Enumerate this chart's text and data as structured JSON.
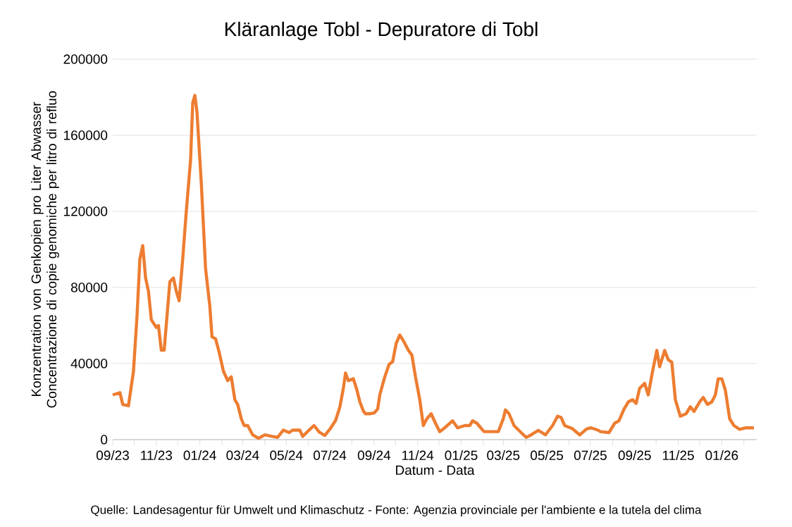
{
  "chart_data": {
    "type": "line",
    "title": "Kläranlage Tobl - Depuratore di Tobl",
    "xlabel": "Datum - Data",
    "ylabel": "Konzentration von Genkopien pro Liter Abwasser Concentrazione di copie genomiche per litro di refluo",
    "annotations": [
      "Quelle: Landesagentur für Umwelt und Klimaschutz - Fonte: Agenzia provinciale per l'ambiente e la tutela del clima"
    ],
    "x": [
      "2023-09-01",
      "2023-09-11",
      "2023-09-15",
      "2023-09-23",
      "2023-09-30",
      "2023-10-05",
      "2023-10-09",
      "2023-10-13",
      "2023-10-17",
      "2023-10-21",
      "2023-10-25",
      "2023-11-01",
      "2023-11-04",
      "2023-11-08",
      "2023-11-12",
      "2023-11-16",
      "2023-11-20",
      "2023-11-25",
      "2023-11-29",
      "2023-12-03",
      "2023-12-08",
      "2023-12-13",
      "2023-12-19",
      "2023-12-22",
      "2023-12-25",
      "2023-12-28",
      "2024-01-03",
      "2024-01-09",
      "2024-01-15",
      "2024-01-18",
      "2024-01-23",
      "2024-01-28",
      "2024-02-03",
      "2024-02-09",
      "2024-02-14",
      "2024-02-19",
      "2024-02-23",
      "2024-02-28",
      "2024-03-03",
      "2024-03-08",
      "2024-03-15",
      "2024-03-23",
      "2024-04-01",
      "2024-04-11",
      "2024-04-19",
      "2024-04-27",
      "2024-05-05",
      "2024-05-10",
      "2024-05-20",
      "2024-05-24",
      "2024-06-02",
      "2024-06-09",
      "2024-06-16",
      "2024-06-24",
      "2024-07-02",
      "2024-07-09",
      "2024-07-15",
      "2024-07-20",
      "2024-07-23",
      "2024-07-27",
      "2024-08-03",
      "2024-08-08",
      "2024-08-12",
      "2024-08-17",
      "2024-08-20",
      "2024-08-26",
      "2024-09-01",
      "2024-09-06",
      "2024-09-09",
      "2024-09-16",
      "2024-09-22",
      "2024-09-27",
      "2024-10-02",
      "2024-10-07",
      "2024-10-12",
      "2024-10-19",
      "2024-10-24",
      "2024-10-29",
      "2024-11-04",
      "2024-11-09",
      "2024-11-14",
      "2024-11-20",
      "2024-11-26",
      "2024-12-02",
      "2024-12-09",
      "2024-12-20",
      "2024-12-27",
      "2025-01-06",
      "2025-01-13",
      "2025-01-17",
      "2025-01-23",
      "2025-02-02",
      "2025-02-12",
      "2025-02-22",
      "2025-03-01",
      "2025-03-04",
      "2025-03-09",
      "2025-03-16",
      "2025-03-26",
      "2025-04-02",
      "2025-04-09",
      "2025-04-19",
      "2025-04-29",
      "2025-05-09",
      "2025-05-16",
      "2025-05-21",
      "2025-05-26",
      "2025-06-06",
      "2025-06-16",
      "2025-06-26",
      "2025-07-02",
      "2025-07-12",
      "2025-07-15",
      "2025-07-27",
      "2025-08-04",
      "2025-08-10",
      "2025-08-17",
      "2025-08-23",
      "2025-08-29",
      "2025-09-03",
      "2025-09-08",
      "2025-09-15",
      "2025-09-20",
      "2025-09-26",
      "2025-10-02",
      "2025-10-06",
      "2025-10-10",
      "2025-10-13",
      "2025-10-18",
      "2025-10-23",
      "2025-10-28",
      "2025-11-04",
      "2025-11-12",
      "2025-11-18",
      "2025-11-23",
      "2025-12-01",
      "2025-12-06",
      "2025-12-12",
      "2025-12-18",
      "2025-12-23",
      "2025-12-27",
      "2026-01-01",
      "2026-01-06",
      "2026-01-12",
      "2026-01-18",
      "2026-01-26",
      "2026-02-04",
      "2026-02-15"
    ],
    "series": [
      {
        "color": "#ed7d31",
        "values": [
          23500,
          24700,
          18500,
          17800,
          35800,
          65000,
          95000,
          102000,
          85000,
          78000,
          63000,
          59000,
          60000,
          47000,
          47000,
          65000,
          83000,
          85000,
          78000,
          73000,
          95000,
          120000,
          147000,
          177000,
          181000,
          172000,
          135000,
          90000,
          70000,
          54000,
          53000,
          46000,
          36000,
          31000,
          33000,
          21000,
          18500,
          11000,
          7400,
          7400,
          2500,
          700,
          2500,
          1700,
          1200,
          5000,
          3700,
          5000,
          5000,
          1700,
          5000,
          7400,
          4000,
          2200,
          6000,
          10000,
          17000,
          27000,
          35000,
          31000,
          32000,
          26000,
          20000,
          15000,
          13600,
          13600,
          14000,
          16000,
          23500,
          33000,
          39500,
          41000,
          50600,
          55000,
          52000,
          47000,
          44400,
          33000,
          21000,
          7400,
          11000,
          13600,
          8600,
          4200,
          6200,
          9900,
          6200,
          7400,
          7400,
          9900,
          8600,
          4200,
          4200,
          4200,
          11000,
          15600,
          13600,
          7400,
          3700,
          1200,
          2500,
          4900,
          2500,
          7400,
          12300,
          11600,
          7400,
          5700,
          2500,
          5700,
          6200,
          4900,
          4200,
          3700,
          8600,
          9900,
          16000,
          19800,
          21000,
          19000,
          27000,
          29600,
          23500,
          35800,
          46900,
          38300,
          43200,
          46900,
          42000,
          40700,
          21000,
          12300,
          13600,
          17300,
          14800,
          19800,
          22200,
          18500,
          19800,
          23500,
          32000,
          32000,
          26000,
          11000,
          7400,
          5400,
          6200,
          6200
        ]
      }
    ],
    "xlim": [
      "2023-09-01",
      "2026-02-19"
    ],
    "xticks": [
      {
        "value": "2023-09-01",
        "label": "09/23"
      },
      {
        "value": "2023-10-01",
        "label": null
      },
      {
        "value": "2023-11-01",
        "label": "11/23"
      },
      {
        "value": "2023-12-01",
        "label": null
      },
      {
        "value": "2024-01-01",
        "label": "01/24"
      },
      {
        "value": "2024-02-01",
        "label": null
      },
      {
        "value": "2024-03-01",
        "label": "03/24"
      },
      {
        "value": "2024-04-01",
        "label": null
      },
      {
        "value": "2024-05-01",
        "label": "05/24"
      },
      {
        "value": "2024-06-01",
        "label": null
      },
      {
        "value": "2024-07-01",
        "label": "07/24"
      },
      {
        "value": "2024-08-01",
        "label": null
      },
      {
        "value": "2024-09-01",
        "label": "09/24"
      },
      {
        "value": "2024-10-01",
        "label": null
      },
      {
        "value": "2024-11-01",
        "label": "11/24"
      },
      {
        "value": "2024-12-01",
        "label": null
      },
      {
        "value": "2025-01-01",
        "label": "01/25"
      },
      {
        "value": "2025-02-01",
        "label": null
      },
      {
        "value": "2025-03-01",
        "label": "03/25"
      },
      {
        "value": "2025-04-01",
        "label": null
      },
      {
        "value": "2025-05-01",
        "label": "05/25"
      },
      {
        "value": "2025-06-01",
        "label": null
      },
      {
        "value": "2025-07-01",
        "label": "07/25"
      },
      {
        "value": "2025-08-01",
        "label": null
      },
      {
        "value": "2025-09-01",
        "label": "09/25"
      },
      {
        "value": "2025-10-01",
        "label": null
      },
      {
        "value": "2025-11-01",
        "label": "11/25"
      },
      {
        "value": "2025-12-01",
        "label": null
      },
      {
        "value": "2026-01-01",
        "label": "01/26"
      },
      {
        "value": "2026-02-01",
        "label": null
      }
    ],
    "ylim": [
      0,
      200000
    ],
    "yticks": [
      0,
      40000,
      80000,
      120000,
      160000,
      200000
    ],
    "grid": "y"
  }
}
